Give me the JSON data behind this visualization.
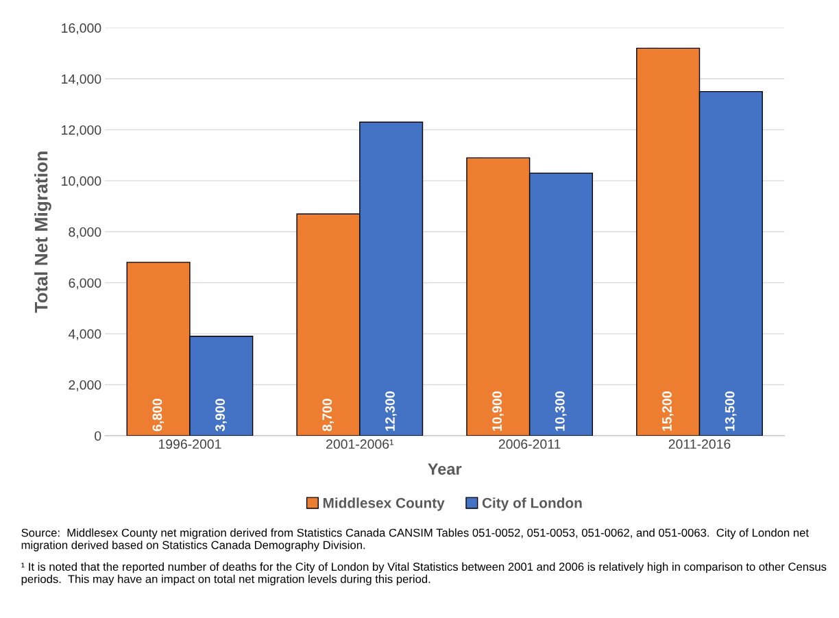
{
  "chart_data": {
    "type": "bar",
    "xlabel": "Year",
    "ylabel": "Total Net Migration",
    "categories": [
      "1996-2001",
      "2001-2006¹",
      "2006-2011",
      "2011-2016"
    ],
    "series": [
      {
        "name": "Middlesex County",
        "color": "#ed7d31",
        "values": [
          6800,
          8700,
          10900,
          15200
        ],
        "value_labels": [
          "6,800",
          "8,700",
          "10,900",
          "15,200"
        ]
      },
      {
        "name": "City of London",
        "color": "#4472c4",
        "values": [
          3900,
          12300,
          10300,
          13500
        ],
        "value_labels": [
          "3,900",
          "12,300",
          "10,300",
          "13,500"
        ]
      }
    ],
    "ylim": [
      0,
      16000
    ],
    "yticks": [
      {
        "value": 0,
        "label": "0"
      },
      {
        "value": 2000,
        "label": "2,000"
      },
      {
        "value": 4000,
        "label": "4,000"
      },
      {
        "value": 6000,
        "label": "6,000"
      },
      {
        "value": 8000,
        "label": "8,000"
      },
      {
        "value": 10000,
        "label": "10,000"
      },
      {
        "value": 12000,
        "label": "12,000"
      },
      {
        "value": 14000,
        "label": "14,000"
      },
      {
        "value": 16000,
        "label": "16,000"
      }
    ],
    "grid": "y",
    "legend": "bottom",
    "annotations": [
      "Source:  Middlesex County net migration derived from Statistics Canada CANSIM Tables 051-0052, 051-0053, 051-0062, and 051-0063.  City of London net migration derived based on Statistics Canada Demography Division.",
      "¹ It is noted that the reported number of deaths for the City of London by Vital Statistics between 2001 and 2006 is relatively high in comparison to other Census periods.  This may have an impact on total net migration levels during this period."
    ]
  }
}
